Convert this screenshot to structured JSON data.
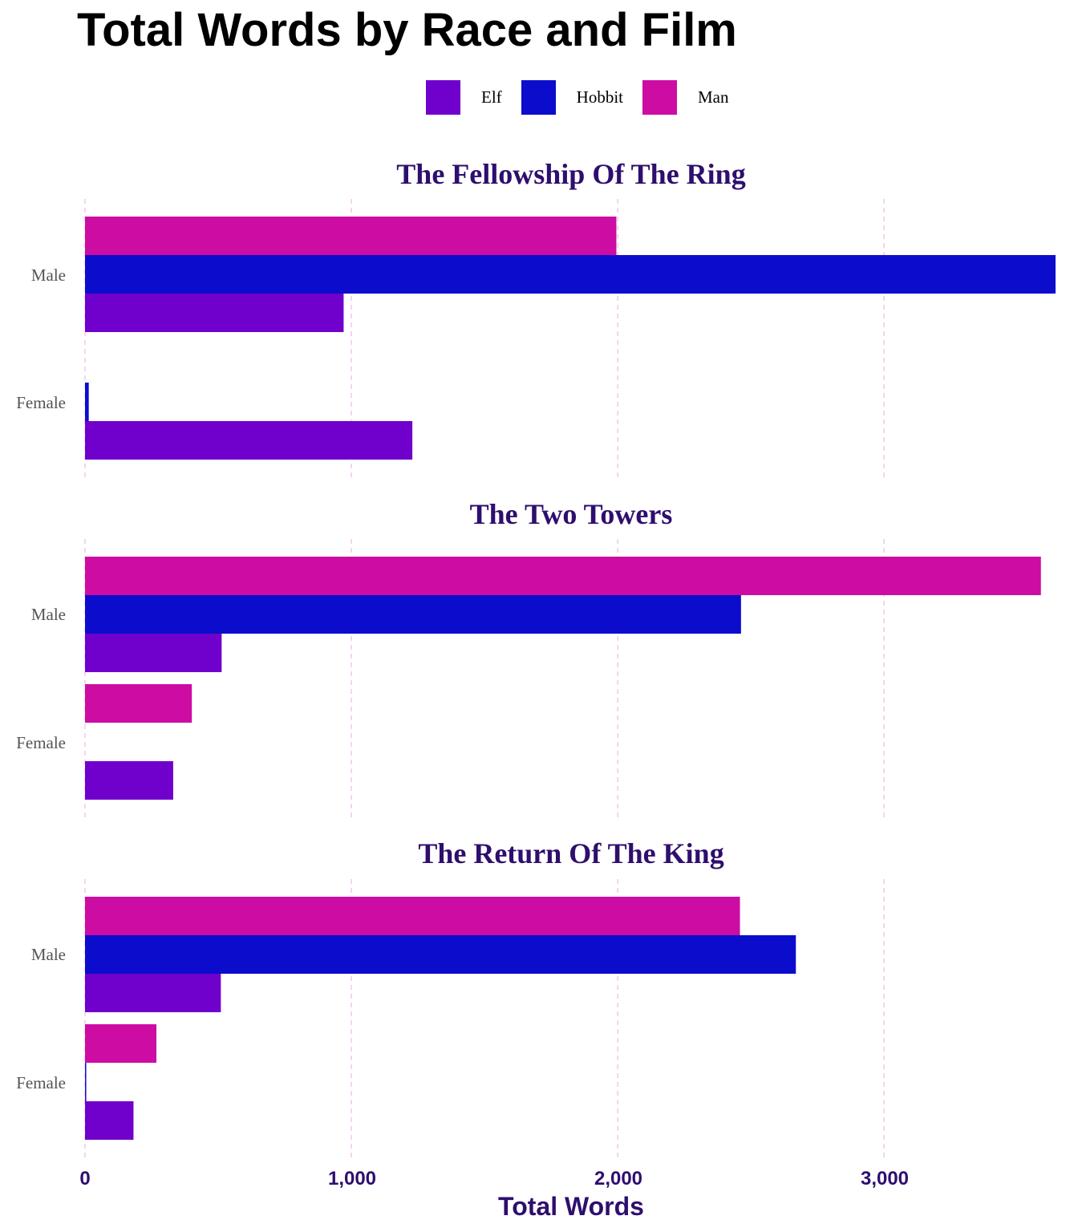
{
  "chart_data": {
    "type": "bar",
    "orientation": "horizontal",
    "title": "Total Words by Race and Film",
    "xlabel": "Total Words",
    "xlim": [
      0,
      3650
    ],
    "x_ticks": [
      "0",
      "1,000",
      "2,000",
      "3,000"
    ],
    "x_tick_values": [
      0,
      1000,
      2000,
      3000
    ],
    "grid": "vertical dashed",
    "legend_position": "top",
    "series": [
      {
        "name": "Elf",
        "color": "#7000cc"
      },
      {
        "name": "Hobbit",
        "color": "#0b0ccc"
      },
      {
        "name": "Man",
        "color": "#cc0ca3"
      }
    ],
    "categories": [
      "Male",
      "Female"
    ],
    "facets": [
      {
        "title": "The Fellowship Of The Ring",
        "groups": [
          {
            "category": "Male",
            "bars": [
              {
                "race": "Man",
                "value": 1995
              },
              {
                "race": "Hobbit",
                "value": 3644
              },
              {
                "race": "Elf",
                "value": 971
              }
            ]
          },
          {
            "category": "Female",
            "bars": [
              {
                "race": "Hobbit",
                "value": 14
              },
              {
                "race": "Elf",
                "value": 1229
              }
            ]
          }
        ]
      },
      {
        "title": "The Two Towers",
        "groups": [
          {
            "category": "Male",
            "bars": [
              {
                "race": "Man",
                "value": 3589
              },
              {
                "race": "Hobbit",
                "value": 2463
              },
              {
                "race": "Elf",
                "value": 513
              }
            ]
          },
          {
            "category": "Female",
            "bars": [
              {
                "race": "Man",
                "value": 401
              },
              {
                "race": "Hobbit",
                "value": 0
              },
              {
                "race": "Elf",
                "value": 331
              }
            ]
          }
        ]
      },
      {
        "title": "The Return Of The King",
        "groups": [
          {
            "category": "Male",
            "bars": [
              {
                "race": "Man",
                "value": 2459
              },
              {
                "race": "Hobbit",
                "value": 2669
              },
              {
                "race": "Elf",
                "value": 510
              }
            ]
          },
          {
            "category": "Female",
            "bars": [
              {
                "race": "Man",
                "value": 268
              },
              {
                "race": "Hobbit",
                "value": 2
              },
              {
                "race": "Elf",
                "value": 182
              }
            ]
          }
        ]
      }
    ]
  }
}
